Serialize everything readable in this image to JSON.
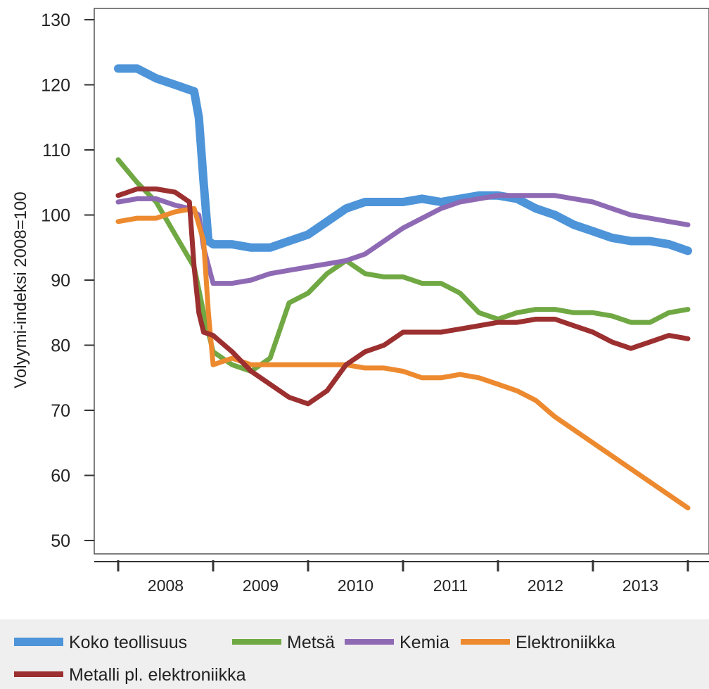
{
  "chart_data": {
    "type": "line",
    "title": "",
    "xlabel": "",
    "ylabel": "Volyymi-indeksi 2008=100",
    "ylim": [
      50,
      130
    ],
    "xlim": [
      2008.0,
      2014.0
    ],
    "y_ticks": [
      50,
      60,
      70,
      80,
      90,
      100,
      110,
      120,
      130
    ],
    "x_tick_labels": [
      {
        "label": "2008",
        "center": 2008.5
      },
      {
        "label": "2009",
        "center": 2009.5
      },
      {
        "label": "2010",
        "center": 2010.5
      },
      {
        "label": "2011",
        "center": 2011.5
      },
      {
        "label": "2012",
        "center": 2012.5
      },
      {
        "label": "2013",
        "center": 2013.5
      }
    ],
    "x_major_ticks": [
      2008,
      2009,
      2010,
      2011,
      2012,
      2013,
      2014
    ],
    "grid": true,
    "legend_position": "bottom",
    "series": [
      {
        "name": "Koko teollisuus",
        "color": "#4d94d9",
        "x": [
          2008.0,
          2008.2,
          2008.4,
          2008.6,
          2008.8,
          2008.85,
          2008.9,
          2008.95,
          2009.0,
          2009.2,
          2009.4,
          2009.6,
          2009.8,
          2010.0,
          2010.2,
          2010.4,
          2010.6,
          2010.8,
          2011.0,
          2011.2,
          2011.4,
          2011.6,
          2011.8,
          2012.0,
          2012.2,
          2012.4,
          2012.6,
          2012.8,
          2013.0,
          2013.2,
          2013.4,
          2013.6,
          2013.8,
          2014.0
        ],
        "y": [
          122.5,
          122.5,
          121,
          120,
          119,
          115,
          105,
          96,
          95.5,
          95.5,
          95,
          95,
          96,
          97,
          99,
          101,
          102,
          102,
          102,
          102.5,
          102,
          102.5,
          103,
          103,
          102.5,
          101,
          100,
          98.5,
          97.5,
          96.5,
          96,
          96,
          95.5,
          94.5
        ]
      },
      {
        "name": "Metsä",
        "color": "#70a843",
        "x": [
          2008.0,
          2008.2,
          2008.4,
          2008.6,
          2008.8,
          2008.9,
          2009.0,
          2009.2,
          2009.4,
          2009.6,
          2009.8,
          2010.0,
          2010.2,
          2010.4,
          2010.6,
          2010.8,
          2011.0,
          2011.2,
          2011.4,
          2011.6,
          2011.8,
          2012.0,
          2012.2,
          2012.4,
          2012.6,
          2012.8,
          2013.0,
          2013.2,
          2013.4,
          2013.6,
          2013.8,
          2014.0
        ],
        "y": [
          108.5,
          105,
          102,
          97,
          92,
          85,
          79,
          77,
          76,
          78,
          86.5,
          88,
          91,
          93,
          91,
          90.5,
          90.5,
          89.5,
          89.5,
          88,
          85,
          84,
          85,
          85.5,
          85.5,
          85,
          85,
          84.5,
          83.5,
          83.5,
          85,
          85.5
        ]
      },
      {
        "name": "Kemia",
        "color": "#8f6ab4",
        "x": [
          2008.0,
          2008.2,
          2008.4,
          2008.6,
          2008.75,
          2008.85,
          2008.9,
          2009.0,
          2009.2,
          2009.4,
          2009.6,
          2009.8,
          2010.0,
          2010.2,
          2010.4,
          2010.6,
          2010.8,
          2011.0,
          2011.2,
          2011.4,
          2011.6,
          2011.8,
          2012.0,
          2012.2,
          2012.4,
          2012.6,
          2012.8,
          2013.0,
          2013.2,
          2013.4,
          2013.6,
          2013.8,
          2014.0
        ],
        "y": [
          102,
          102.5,
          102.5,
          101.5,
          101,
          100,
          95,
          89.5,
          89.5,
          90,
          91,
          91.5,
          92,
          92.5,
          93,
          94,
          96,
          98,
          99.5,
          101,
          102,
          102.5,
          103,
          103,
          103,
          103,
          102.5,
          102,
          101,
          100,
          99.5,
          99,
          98.5
        ]
      },
      {
        "name": "Elektroniikka",
        "color": "#ed8a2f",
        "x": [
          2008.0,
          2008.2,
          2008.4,
          2008.6,
          2008.8,
          2008.9,
          2008.95,
          2009.0,
          2009.2,
          2009.4,
          2009.6,
          2009.8,
          2010.0,
          2010.2,
          2010.4,
          2010.6,
          2010.8,
          2011.0,
          2011.2,
          2011.4,
          2011.6,
          2011.8,
          2012.0,
          2012.2,
          2012.4,
          2012.6,
          2012.8,
          2013.0,
          2013.2,
          2013.4,
          2013.6,
          2013.8,
          2014.0
        ],
        "y": [
          99,
          99.5,
          99.5,
          100.5,
          101,
          96,
          85,
          77,
          78,
          77,
          77,
          77,
          77,
          77,
          77,
          76.5,
          76.5,
          76,
          75,
          75,
          75.5,
          75,
          74,
          73,
          71.5,
          69,
          67,
          65,
          63,
          61,
          59,
          57,
          55
        ]
      },
      {
        "name": "Metalli pl. elektroniikka",
        "color": "#9c2f2f",
        "x": [
          2008.0,
          2008.2,
          2008.4,
          2008.6,
          2008.75,
          2008.8,
          2008.85,
          2008.9,
          2009.0,
          2009.2,
          2009.4,
          2009.6,
          2009.8,
          2010.0,
          2010.2,
          2010.4,
          2010.6,
          2010.8,
          2011.0,
          2011.2,
          2011.4,
          2011.6,
          2011.8,
          2012.0,
          2012.2,
          2012.4,
          2012.6,
          2012.8,
          2013.0,
          2013.2,
          2013.4,
          2013.6,
          2013.8,
          2014.0
        ],
        "y": [
          103,
          104,
          104,
          103.5,
          102,
          92,
          85,
          82,
          81.5,
          79,
          76,
          74,
          72,
          71,
          73,
          77,
          79,
          80,
          82,
          82,
          82,
          82.5,
          83,
          83.5,
          83.5,
          84,
          84,
          83,
          82,
          80.5,
          79.5,
          80.5,
          81.5,
          81
        ]
      }
    ],
    "legend": [
      {
        "label": "Koko teollisuus",
        "color": "#4d94d9",
        "row": 1
      },
      {
        "label": "Metsä",
        "color": "#70a843",
        "row": 1
      },
      {
        "label": "Kemia",
        "color": "#8f6ab4",
        "row": 1
      },
      {
        "label": "Elektroniikka",
        "color": "#ed8a2f",
        "row": 1
      },
      {
        "label": "Metalli pl. elektroniikka",
        "color": "#9c2f2f",
        "row": 2
      }
    ]
  }
}
